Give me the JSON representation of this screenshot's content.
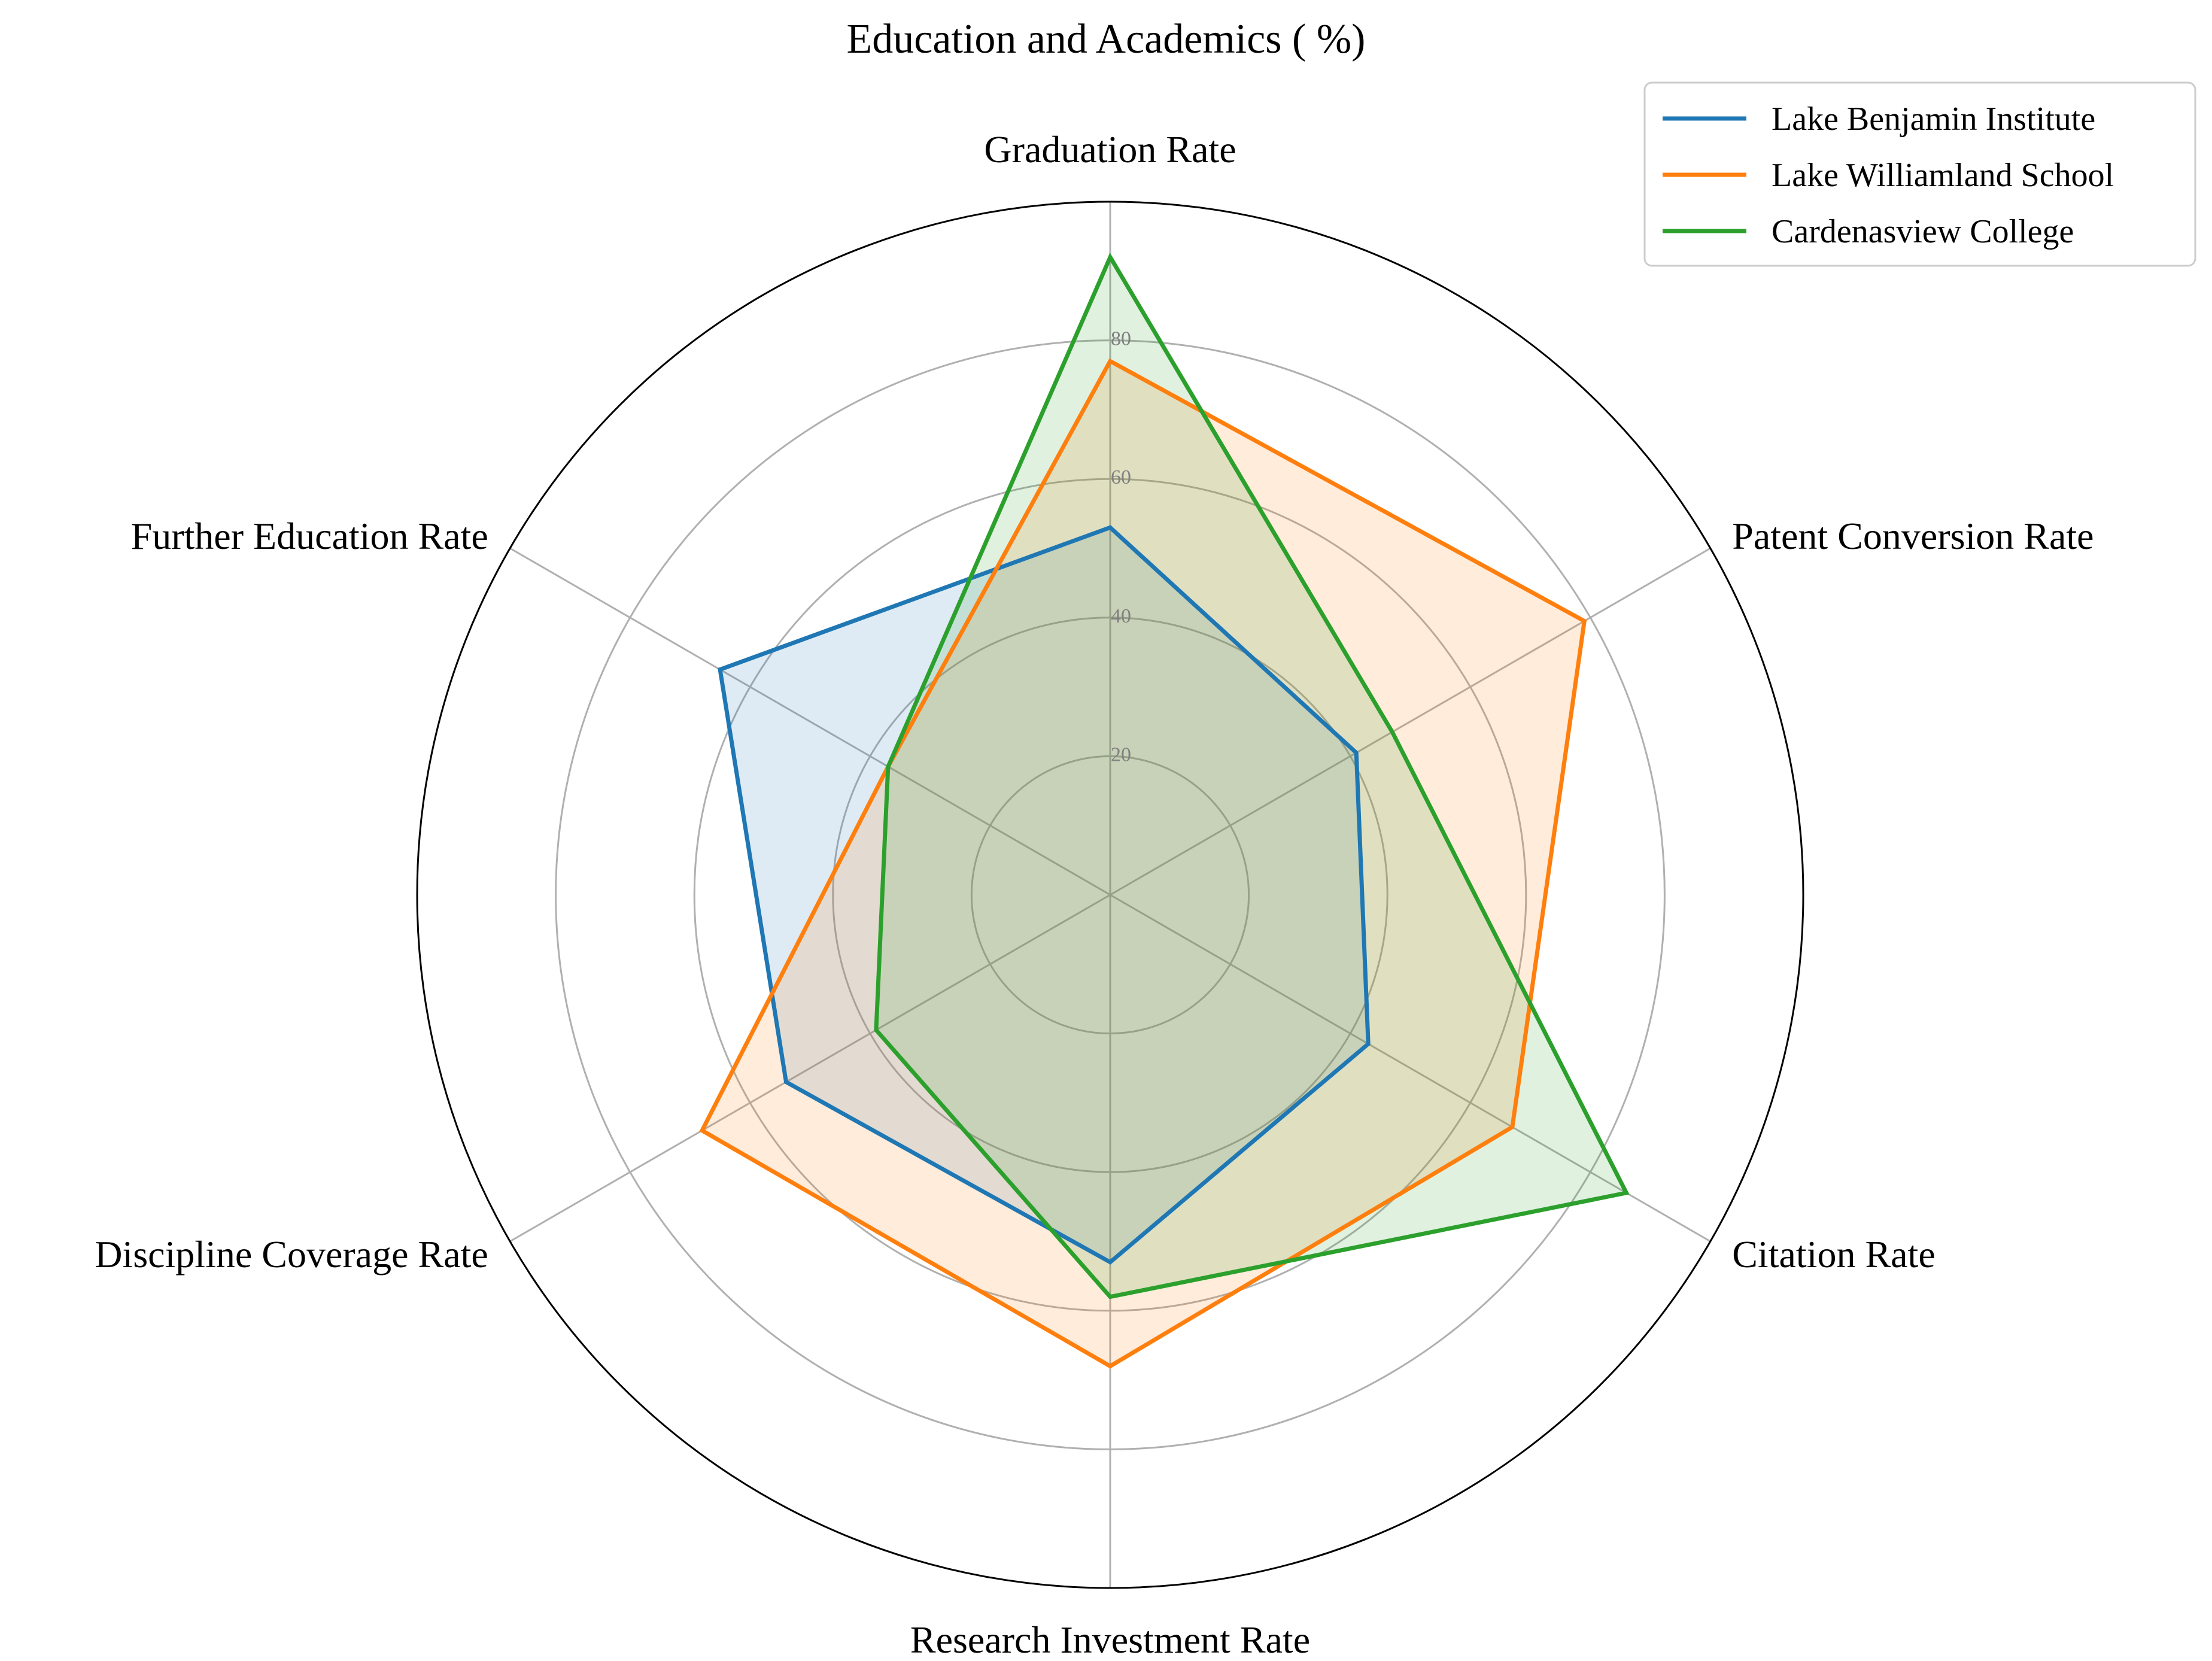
{
  "chart_data": {
    "type": "radar",
    "title": "Education and Academics ( %)",
    "axes": [
      "Graduation Rate",
      "Patent Conversion Rate",
      "Citation Rate",
      "Research Investment Rate",
      "Discipline Coverage Rate",
      "Further Education Rate"
    ],
    "rmax": 100,
    "ticks": [
      20,
      40,
      60,
      80
    ],
    "tick_labels": [
      "20",
      "40",
      "60",
      "80"
    ],
    "grid": true,
    "legend_position": "top-right",
    "series": [
      {
        "name": "Lake Benjamin Institute",
        "color": "#1f77b4",
        "values": [
          53,
          41,
          43,
          53,
          54,
          65
        ]
      },
      {
        "name": "Lake Williamland School",
        "color": "#ff7f0e",
        "values": [
          77,
          79,
          67,
          68,
          68,
          37
        ]
      },
      {
        "name": "Cardenasview College",
        "color": "#2ca02c",
        "values": [
          92,
          47,
          86,
          58,
          39,
          37
        ]
      }
    ]
  }
}
